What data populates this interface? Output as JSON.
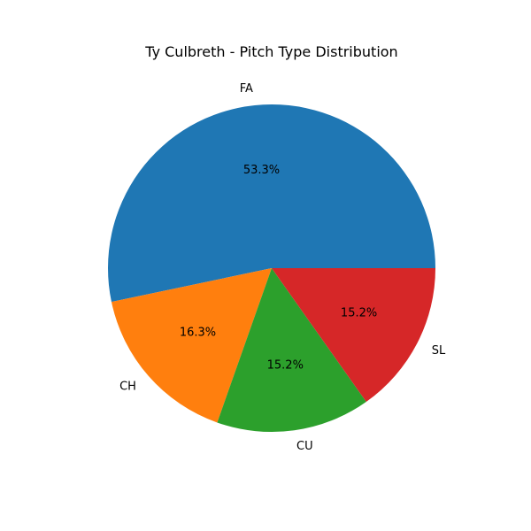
{
  "chart_data": {
    "type": "pie",
    "title": "Ty Culbreth - Pitch Type Distribution",
    "categories": [
      "FA",
      "CH",
      "CU",
      "SL"
    ],
    "values": [
      53.3,
      16.3,
      15.2,
      15.2
    ],
    "percent_labels": [
      "53.3%",
      "16.3%",
      "15.2%",
      "15.2%"
    ],
    "colors": [
      "#1f77b4",
      "#ff7f0e",
      "#2ca02c",
      "#d62728"
    ],
    "start_angle_deg": 0,
    "direction": "counterclockwise",
    "legend": "none"
  }
}
